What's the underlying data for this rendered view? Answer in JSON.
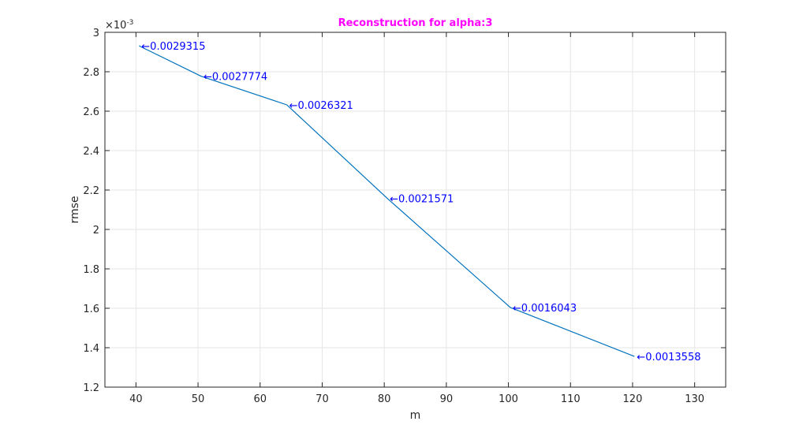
{
  "chart_data": {
    "type": "line",
    "title": "Reconstruction for alpha:3",
    "xlabel": "m",
    "ylabel": "rmse",
    "y_exponent_label": "×10",
    "y_exponent_power": "-3",
    "xlim": [
      35,
      135
    ],
    "ylim": [
      0.0012,
      0.003
    ],
    "x_ticks": [
      40,
      50,
      60,
      70,
      80,
      90,
      100,
      110,
      120,
      130
    ],
    "x_tick_labels": [
      "40",
      "50",
      "60",
      "70",
      "80",
      "90",
      "100",
      "110",
      "120",
      "130"
    ],
    "y_ticks": [
      0.0012,
      0.0014,
      0.0016,
      0.0018,
      0.002,
      0.0022,
      0.0024,
      0.0026,
      0.0028,
      0.003
    ],
    "y_tick_labels": [
      "1.2",
      "1.4",
      "1.6",
      "1.8",
      "2",
      "2.2",
      "2.4",
      "2.6",
      "2.8",
      "3"
    ],
    "grid": true,
    "series": [
      {
        "x": [
          40.5,
          50.5,
          64.3,
          80.5,
          100.3,
          120.3
        ],
        "y": [
          0.0029315,
          0.0027774,
          0.0026321,
          0.0021571,
          0.0016043,
          0.0013558
        ],
        "data_labels": [
          "←0.0029315",
          "←0.0027774",
          "←0.0026321",
          "←0.0021571",
          "←0.0016043",
          "←0.0013558"
        ]
      }
    ],
    "colors": {
      "line": "#0072bd",
      "title": "#ff00ff",
      "data_label": "#0000ff",
      "grid": "#e6e6e6",
      "axis": "#262626"
    }
  }
}
